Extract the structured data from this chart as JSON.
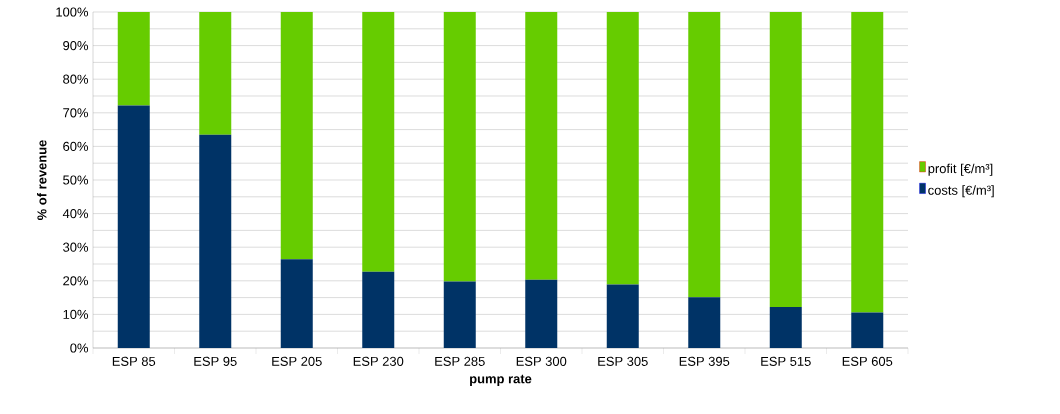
{
  "chart_data": {
    "type": "bar",
    "stacked": true,
    "xlabel": "pump rate",
    "ylabel": "% of revenue",
    "categories": [
      "ESP 85",
      "ESP 95",
      "ESP 205",
      "ESP 230",
      "ESP 285",
      "ESP 300",
      "ESP 305",
      "ESP 395",
      "ESP 515",
      "ESP 605"
    ],
    "series": [
      {
        "name": "costs [€/m³]",
        "color": "#003366",
        "values": [
          72.2,
          63.5,
          26.4,
          22.7,
          19.8,
          20.3,
          18.9,
          15.1,
          12.2,
          10.6
        ]
      },
      {
        "name": "profit [€/m³]",
        "color": "#66cc00",
        "values": [
          27.8,
          36.5,
          73.6,
          77.3,
          80.2,
          79.7,
          81.1,
          84.9,
          87.8,
          89.4
        ]
      }
    ],
    "ylim": [
      0,
      100
    ],
    "yticks": [
      {
        "value": 0,
        "label": "0%"
      },
      {
        "value": 5,
        "label": null
      },
      {
        "value": 10,
        "label": "10%"
      },
      {
        "value": 15,
        "label": null
      },
      {
        "value": 20,
        "label": "20%"
      },
      {
        "value": 25,
        "label": null
      },
      {
        "value": 30,
        "label": "30%"
      },
      {
        "value": 35,
        "label": null
      },
      {
        "value": 40,
        "label": "40%"
      },
      {
        "value": 45,
        "label": null
      },
      {
        "value": 50,
        "label": "50%"
      },
      {
        "value": 55,
        "label": null
      },
      {
        "value": 60,
        "label": "60%"
      },
      {
        "value": 65,
        "label": null
      },
      {
        "value": 70,
        "label": "70%"
      },
      {
        "value": 75,
        "label": null
      },
      {
        "value": 80,
        "label": "80%"
      },
      {
        "value": 85,
        "label": null
      },
      {
        "value": 90,
        "label": "90%"
      },
      {
        "value": 95,
        "label": null
      },
      {
        "value": 100,
        "label": "100%"
      }
    ],
    "grid": "y",
    "legend": "right"
  }
}
